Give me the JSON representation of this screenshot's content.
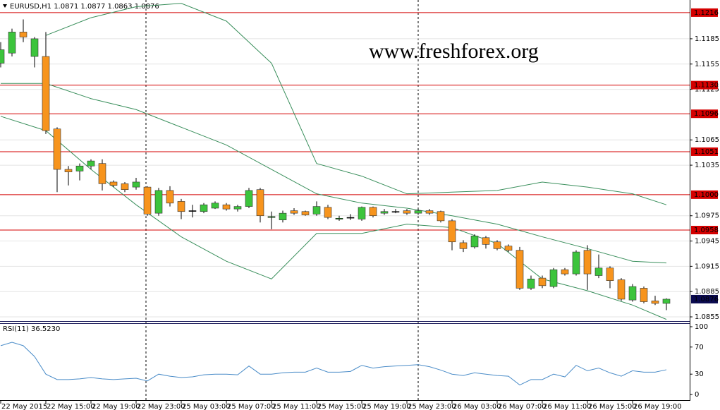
{
  "chart_data": {
    "type": "candlestick",
    "title": "EURUSD,H1 1.0871 1.0877 1.0863 1.0876",
    "watermark": "www.freshforex.org",
    "categories": [
      "22 May 2015",
      null,
      null,
      null,
      "22 May 15:00",
      null,
      null,
      null,
      "22 May 19:00",
      null,
      null,
      null,
      "22 May 23:00",
      null,
      null,
      null,
      "25 May 03:00",
      null,
      null,
      null,
      "25 May 07:00",
      null,
      null,
      null,
      "25 May 11:00",
      null,
      null,
      null,
      "25 May 15:00",
      null,
      null,
      null,
      "25 May 19:00",
      null,
      null,
      null,
      "25 May 23:00",
      null,
      null,
      null,
      "26 May 03:00",
      null,
      null,
      null,
      "26 May 07:00",
      null,
      null,
      null,
      "26 May 11:00",
      null,
      null,
      null,
      "26 May 15:00",
      null,
      null,
      null,
      "26 May 19:00",
      null,
      null,
      null
    ],
    "open": [
      1.1156,
      1.1168,
      1.1193,
      1.1164,
      1.1164,
      1.1078,
      1.103,
      1.1028,
      1.1034,
      1.1037,
      1.1015,
      1.1013,
      1.1009,
      1.1009,
      1.0978,
      1.1005,
      1.0992,
      1.0981,
      1.098,
      1.0984,
      1.0988,
      1.0983,
      1.0986,
      1.1006,
      1.0973,
      1.097,
      1.0981,
      1.098,
      1.0977,
      1.0985,
      1.0971,
      1.0973,
      1.0971,
      1.0985,
      1.0978,
      1.098,
      1.0981,
      1.0978,
      1.0981,
      1.098,
      1.0969,
      1.0943,
      1.0938,
      1.0949,
      1.0944,
      1.0939,
      1.0934,
      1.0889,
      1.0901,
      1.0891,
      1.0911,
      1.0906,
      1.0934,
      1.0904,
      1.0913,
      1.0899,
      1.0875,
      1.0889,
      1.0874,
      1.0871
    ],
    "high": [
      1.1181,
      1.1197,
      1.1208,
      1.1187,
      1.1193,
      1.108,
      1.1034,
      1.1037,
      1.1042,
      1.1042,
      1.1017,
      1.1015,
      1.102,
      1.101,
      1.1008,
      1.101,
      1.0995,
      1.0988,
      1.099,
      1.0992,
      1.099,
      1.0988,
      1.1008,
      1.1008,
      1.098,
      1.0981,
      1.0984,
      1.0981,
      1.0992,
      1.0988,
      1.0975,
      1.0977,
      1.0986,
      1.0986,
      1.0983,
      1.0983,
      1.0983,
      1.0983,
      1.0983,
      1.0981,
      1.0971,
      1.0946,
      1.0953,
      1.0951,
      1.0946,
      1.0941,
      1.0938,
      1.0904,
      1.0904,
      1.0913,
      1.0913,
      1.0934,
      1.094,
      1.0929,
      1.0915,
      1.0901,
      1.0894,
      1.0891,
      1.088,
      1.0877
    ],
    "low": [
      1.1151,
      1.1164,
      1.1181,
      1.1151,
      1.1072,
      1.1003,
      1.1011,
      1.1017,
      1.103,
      1.1005,
      1.1009,
      1.1003,
      1.1006,
      1.0975,
      1.0975,
      1.0986,
      1.0971,
      1.0973,
      1.0978,
      1.0983,
      1.0981,
      1.098,
      1.0984,
      1.0967,
      1.0959,
      1.0967,
      1.0976,
      1.0975,
      1.0975,
      1.0971,
      1.0969,
      1.097,
      1.0969,
      1.0973,
      1.0976,
      1.0978,
      1.0976,
      1.0976,
      1.0976,
      1.0967,
      1.0934,
      1.0932,
      1.0936,
      1.0936,
      1.0934,
      1.0932,
      1.0887,
      1.0887,
      1.0889,
      1.0889,
      1.0904,
      1.0904,
      1.0887,
      1.0901,
      1.0889,
      1.0874,
      1.0873,
      1.0871,
      1.0869,
      1.0863
    ],
    "close": [
      1.1172,
      1.1193,
      1.1187,
      1.1185,
      1.1076,
      1.103,
      1.1027,
      1.1034,
      1.104,
      1.1013,
      1.1011,
      1.1006,
      1.1015,
      1.0977,
      1.1005,
      1.099,
      1.098,
      1.0981,
      1.0988,
      1.099,
      1.0983,
      1.0986,
      1.1005,
      1.0975,
      1.0974,
      1.0978,
      1.0978,
      1.0976,
      1.0986,
      1.0973,
      1.0972,
      1.0973,
      1.0985,
      1.0975,
      1.098,
      1.098,
      1.0978,
      1.0981,
      1.0978,
      1.0969,
      1.0944,
      1.0936,
      1.0951,
      1.0941,
      1.0936,
      1.0934,
      1.0889,
      1.09,
      1.0892,
      1.0911,
      1.0906,
      1.0932,
      1.0906,
      1.0913,
      1.0898,
      1.0876,
      1.0891,
      1.0873,
      1.0871,
      1.0876
    ],
    "up_color": "#3cc43c",
    "down_color": "#f7941d",
    "ylim": [
      1.085,
      1.1231
    ],
    "yticks": [
      1.1185,
      1.1155,
      1.1125,
      1.1065,
      1.1035,
      1.0975,
      1.0945,
      1.0915,
      1.0885,
      1.0855
    ],
    "grid": true,
    "levels": [
      1.1216,
      {
        "value": 1.113,
        "label": "1.1130"
      },
      1.1096,
      1.1051,
      {
        "value": 1.1,
        "label": "1.1000"
      },
      1.0958
    ],
    "level_color": "#d40000",
    "current_price": 1.0876,
    "bands": {
      "color": "#3a8f5c",
      "x": [
        0,
        4,
        8,
        12,
        16,
        20,
        24,
        28,
        32,
        36,
        40,
        44,
        48,
        52,
        56,
        59
      ],
      "upper": [
        null,
        1.1189,
        1.121,
        1.1223,
        1.1227,
        1.1206,
        1.1156,
        1.1037,
        1.1022,
        1.1001,
        1.1003,
        1.1005,
        1.1015,
        1.1009,
        1.1001,
        1.0988
      ],
      "middle": [
        1.1132,
        1.1132,
        1.1114,
        1.1101,
        1.108,
        1.1059,
        1.103,
        1.1001,
        1.099,
        1.0984,
        1.0975,
        1.0965,
        1.095,
        1.0936,
        1.0921,
        1.0919
      ],
      "lower": [
        1.1093,
        1.1076,
        1.103,
        1.0988,
        1.095,
        1.0921,
        1.09,
        1.0954,
        1.0954,
        1.0965,
        1.0961,
        1.0942,
        1.09,
        1.0886,
        1.0869,
        1.0852
      ]
    },
    "rsi": {
      "title": "RSI(11) 36.5230",
      "color": "#4a8cc8",
      "ylim": [
        0,
        100
      ],
      "yticks": [
        0,
        30,
        70,
        100
      ],
      "values": [
        72,
        77,
        72,
        56,
        30,
        22,
        22,
        23,
        25,
        23,
        22,
        23,
        24,
        20,
        30,
        27,
        25,
        26,
        29,
        30,
        30,
        29,
        42,
        30,
        30,
        32,
        33,
        33,
        39,
        33,
        33,
        34,
        43,
        39,
        41,
        42,
        43,
        44,
        41,
        36,
        30,
        28,
        32,
        30,
        28,
        27,
        14,
        22,
        22,
        30,
        26,
        43,
        35,
        39,
        32,
        27,
        35,
        33,
        33,
        36.523
      ]
    }
  }
}
